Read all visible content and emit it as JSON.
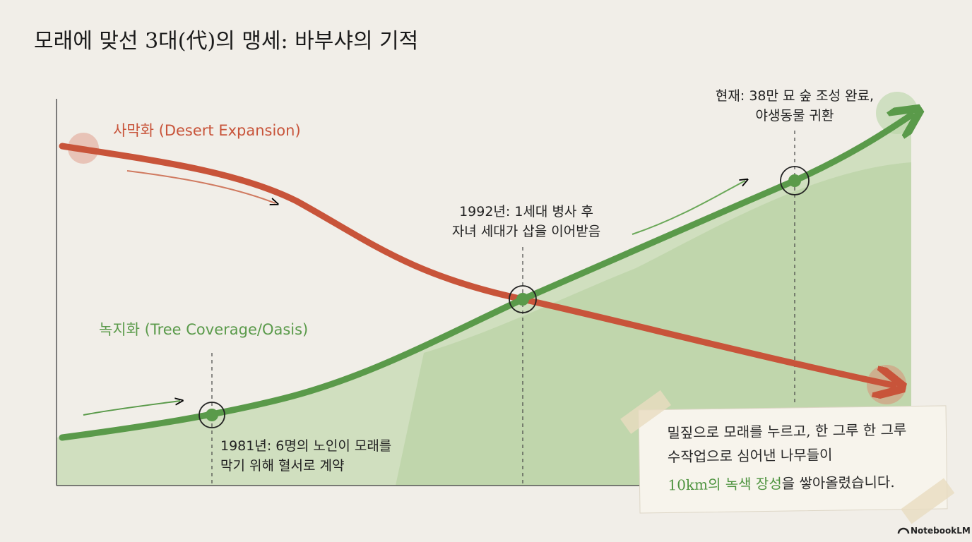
{
  "title": "모래에 맞선 3대(代)의 맹세: 바부샤의 기적",
  "curves": [
    {
      "label": "사막화 (Desert Expansion)",
      "color": "#c8543a"
    },
    {
      "label": "녹지화 (Tree Coverage/Oasis)",
      "color": "#5a9a4a"
    }
  ],
  "milestones": [
    {
      "lines": [
        "1981년: 6명의 노인이 모래를",
        "막기 위해 혈서로 계약"
      ]
    },
    {
      "lines": [
        "1992년: 1세대 병사 후",
        "자녀 세대가 삽을 이어받음"
      ]
    },
    {
      "lines": [
        "현재: 38만 묘 숲 조성 완료,",
        "야생동물 귀환"
      ]
    }
  ],
  "note": {
    "lines": [
      "밀짚으로 모래를 누르고, 한 그루 한 그루",
      "수작업으로 심어낸 나무들이"
    ],
    "highlight": "10km의 녹색 장성",
    "ending": "을 쌓아올렸습니다."
  },
  "brand": "NotebookLM"
}
